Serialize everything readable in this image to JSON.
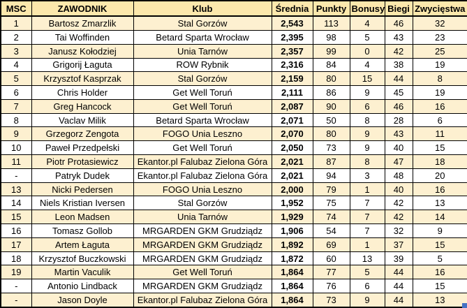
{
  "colors": {
    "header_bg": "#fce8ac",
    "stripe_row_bg": "#fdf0d0",
    "row_bg": "#ffffff",
    "border": "#000000",
    "resize_handle_blue": "#4472c4"
  },
  "handle": {
    "icon": "resize-handle"
  },
  "table": {
    "columns": [
      {
        "key": "msc",
        "label": "MSC"
      },
      {
        "key": "zawodnik",
        "label": "ZAWODNIK"
      },
      {
        "key": "klub",
        "label": "Klub"
      },
      {
        "key": "srednia",
        "label": "Średnia"
      },
      {
        "key": "punkty",
        "label": "Punkty"
      },
      {
        "key": "bonusy",
        "label": "Bonusy"
      },
      {
        "key": "biegi",
        "label": "Biegi"
      },
      {
        "key": "zwyciestwa",
        "label": "Zwycięstwa"
      }
    ],
    "rows": [
      [
        "1",
        "Bartosz Zmarzlik",
        "Stal Gorzów",
        "2,543",
        "113",
        "4",
        "46",
        "32"
      ],
      [
        "2",
        "Tai Woffinden",
        "Betard Sparta Wrocław",
        "2,395",
        "98",
        "5",
        "43",
        "23"
      ],
      [
        "3",
        "Janusz Kołodziej",
        "Unia Tarnów",
        "2,357",
        "99",
        "0",
        "42",
        "25"
      ],
      [
        "4",
        "Grigorij Łaguta",
        "ROW Rybnik",
        "2,316",
        "84",
        "4",
        "38",
        "19"
      ],
      [
        "5",
        "Krzysztof Kasprzak",
        "Stal Gorzów",
        "2,159",
        "80",
        "15",
        "44",
        "8"
      ],
      [
        "6",
        "Chris Holder",
        "Get Well Toruń",
        "2,111",
        "86",
        "9",
        "45",
        "19"
      ],
      [
        "7",
        "Greg Hancock",
        "Get Well Toruń",
        "2,087",
        "90",
        "6",
        "46",
        "16"
      ],
      [
        "8",
        "Vaclav Milik",
        "Betard Sparta Wrocław",
        "2,071",
        "50",
        "8",
        "28",
        "6"
      ],
      [
        "9",
        "Grzegorz Zengota",
        "FOGO Unia Leszno",
        "2,070",
        "80",
        "9",
        "43",
        "11"
      ],
      [
        "10",
        "Paweł Przedpełski",
        "Get Well Toruń",
        "2,050",
        "73",
        "9",
        "40",
        "15"
      ],
      [
        "11",
        "Piotr Protasiewicz",
        "Ekantor.pl Falubaz Zielona Góra",
        "2,021",
        "87",
        "8",
        "47",
        "18"
      ],
      [
        "-",
        "Patryk Dudek",
        "Ekantor.pl Falubaz Zielona Góra",
        "2,021",
        "94",
        "3",
        "48",
        "20"
      ],
      [
        "13",
        "Nicki Pedersen",
        "FOGO Unia Leszno",
        "2,000",
        "79",
        "1",
        "40",
        "16"
      ],
      [
        "14",
        "Niels Kristian Iversen",
        "Stal Gorzów",
        "1,952",
        "75",
        "7",
        "42",
        "13"
      ],
      [
        "15",
        "Leon Madsen",
        "Unia Tarnów",
        "1,929",
        "74",
        "7",
        "42",
        "14"
      ],
      [
        "16",
        "Tomasz Gollob",
        "MRGARDEN GKM Grudziądz",
        "1,906",
        "54",
        "7",
        "32",
        "9"
      ],
      [
        "17",
        "Artem Łaguta",
        "MRGARDEN GKM Grudziądz",
        "1,892",
        "69",
        "1",
        "37",
        "15"
      ],
      [
        "18",
        "Krzysztof Buczkowski",
        "MRGARDEN GKM Grudziądz",
        "1,872",
        "60",
        "13",
        "39",
        "5"
      ],
      [
        "19",
        "Martin Vaculik",
        "Get Well Toruń",
        "1,864",
        "77",
        "5",
        "44",
        "16"
      ],
      [
        "-",
        "Antonio Lindback",
        "MRGARDEN GKM Grudziądz",
        "1,864",
        "76",
        "6",
        "44",
        "15"
      ],
      [
        "-",
        "Jason Doyle",
        "Ekantor.pl Falubaz Zielona Góra",
        "1,864",
        "73",
        "9",
        "44",
        "13"
      ]
    ]
  }
}
